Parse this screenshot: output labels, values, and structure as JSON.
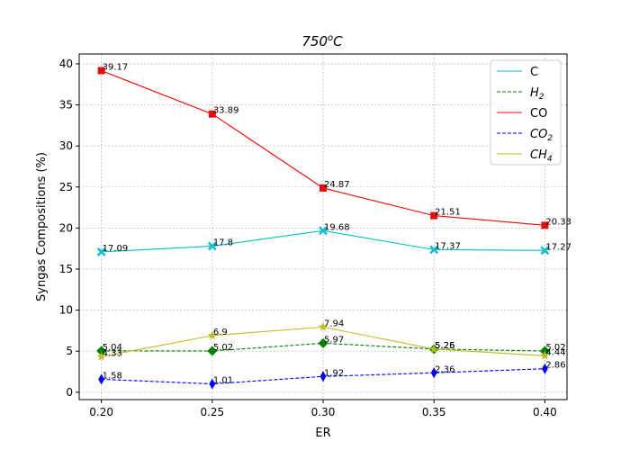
{
  "chart_data": {
    "type": "line",
    "title_main": "750",
    "title_sup": "o",
    "title_tail": "C",
    "xlabel": "ER",
    "ylabel": "Syngas Compositions (%)",
    "x": [
      0.2,
      0.25,
      0.3,
      0.35,
      0.4
    ],
    "x_tick_labels": [
      "0.20",
      "0.25",
      "0.30",
      "0.35",
      "0.40"
    ],
    "y_ticks": [
      0,
      5,
      10,
      15,
      20,
      25,
      30,
      35,
      40
    ],
    "y_tick_labels": [
      "0",
      "5",
      "10",
      "15",
      "20",
      "25",
      "30",
      "35",
      "40"
    ],
    "xlim": [
      0.19,
      0.41
    ],
    "ylim": [
      -0.9,
      41.2
    ],
    "grid": true,
    "legend_position": "top-right",
    "series": [
      {
        "name": "C",
        "name_main": "C",
        "name_sub": "",
        "color": "#17becf",
        "line_color": "#00c0c0",
        "dash": "solid",
        "marker": "x",
        "marker_color": "#17becf",
        "values": [
          17.09,
          17.8,
          19.68,
          17.37,
          17.27
        ],
        "labels": [
          "17.09",
          "17.8",
          "19.68",
          "17.37",
          "17.27"
        ]
      },
      {
        "name": "H2",
        "name_main": "H",
        "name_sub": "2",
        "color": "#008000",
        "line_color": "#008000",
        "dash": "dashed",
        "marker": "diamond",
        "marker_color": "#008000",
        "values": [
          5.04,
          5.02,
          5.97,
          5.26,
          5.02
        ],
        "labels": [
          "5.04",
          "5.02",
          "5.97",
          "5.26",
          "5.02"
        ]
      },
      {
        "name": "CO",
        "name_main": "CO",
        "name_sub": "",
        "color": "#ff0000",
        "line_color": "#ff0000",
        "dash": "solid",
        "marker": "square",
        "marker_color": "#e01010",
        "values": [
          39.17,
          33.89,
          24.87,
          21.51,
          20.33
        ],
        "labels": [
          "39.17",
          "33.89",
          "24.87",
          "21.51",
          "20.33"
        ]
      },
      {
        "name": "CO2",
        "name_main": "CO",
        "name_sub": "2",
        "color": "#0000ff",
        "line_color": "#0000ff",
        "dash": "dashed",
        "marker": "thin_diamond",
        "marker_color": "#0000ff",
        "values": [
          1.58,
          1.01,
          1.92,
          2.36,
          2.86
        ],
        "labels": [
          "1.58",
          "1.01",
          "1.92",
          "2.36",
          "2.86"
        ]
      },
      {
        "name": "CH4",
        "name_main": "CH",
        "name_sub": "4",
        "color": "#bcbd22",
        "line_color": "#bcbd22",
        "dash": "solid",
        "marker": "star",
        "marker_color": "#bcbd22",
        "values": [
          4.33,
          6.9,
          7.94,
          5.25,
          4.44
        ],
        "labels": [
          "4.33",
          "6.9",
          "7.94",
          "5.25",
          "4.44"
        ]
      }
    ]
  }
}
